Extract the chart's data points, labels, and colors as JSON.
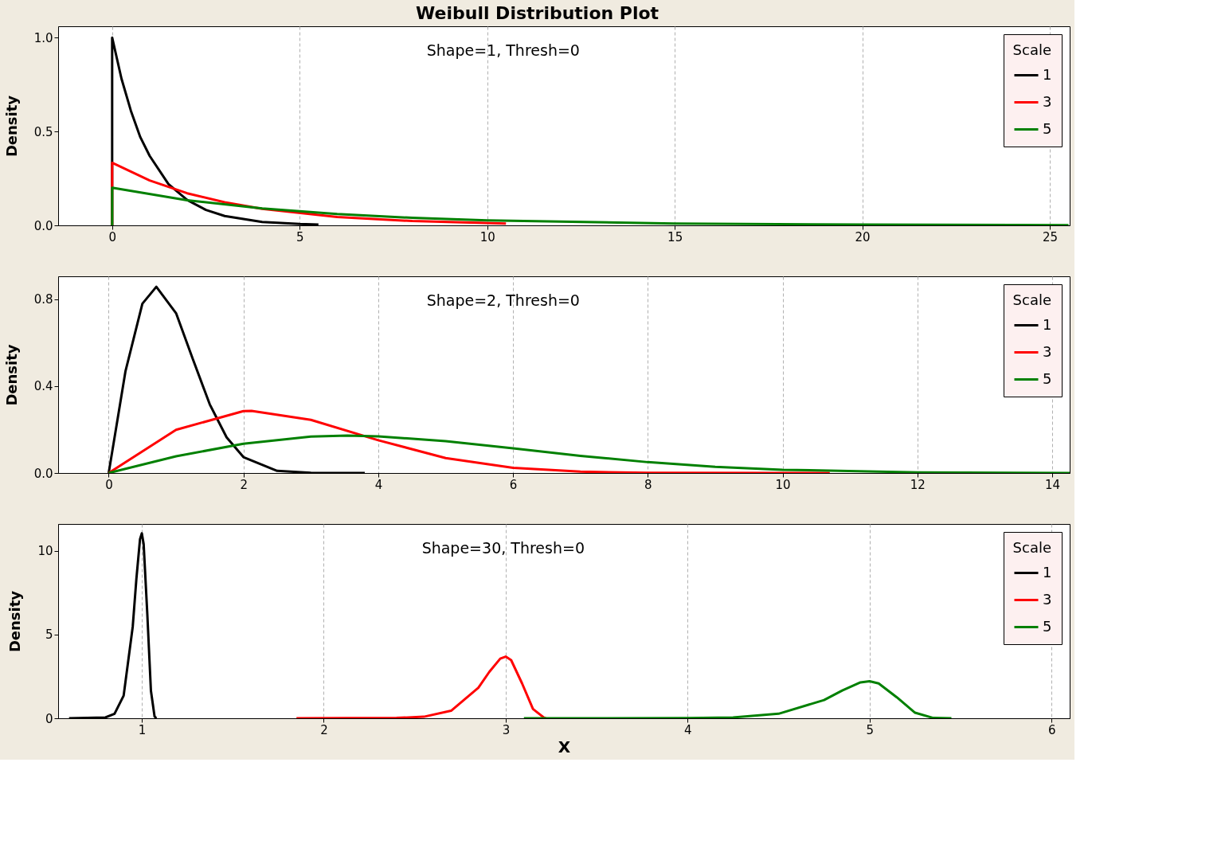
{
  "chart_data": [
    {
      "type": "line",
      "title": "Weibull Distribution Plot",
      "ylabel": "Density",
      "annotations": [
        "Shape=1, Thresh=0"
      ],
      "legend_title": "Scale",
      "legend": "top right",
      "grid": "x",
      "xlim": [
        -1.44,
        25.53
      ],
      "xticks": [
        0,
        5,
        10,
        15,
        20,
        25
      ],
      "ylim": [
        0,
        1.06
      ],
      "yticks": [
        {
          "value": 0,
          "label": "0.0"
        },
        {
          "value": 0.5,
          "label": "0.5"
        },
        {
          "value": 1,
          "label": "1.0"
        }
      ],
      "series": [
        {
          "name": "1",
          "color": "#000000",
          "x": [
            0,
            0,
            0.25,
            0.5,
            0.75,
            1,
            1.5,
            2,
            2.5,
            3,
            4,
            5,
            5.5
          ],
          "values": [
            0,
            1,
            0.78,
            0.61,
            0.47,
            0.37,
            0.22,
            0.135,
            0.082,
            0.05,
            0.018,
            0.007,
            0.004
          ]
        },
        {
          "name": "3",
          "color": "#ff0000",
          "x": [
            0,
            0,
            1,
            2,
            3,
            4,
            6,
            8,
            10.5
          ],
          "values": [
            0,
            0.333,
            0.239,
            0.171,
            0.123,
            0.088,
            0.045,
            0.023,
            0.01
          ]
        },
        {
          "name": "5",
          "color": "#008000",
          "x": [
            0,
            0,
            2,
            4,
            6,
            8,
            10,
            15,
            20,
            25.5
          ],
          "values": [
            0,
            0.2,
            0.134,
            0.09,
            0.06,
            0.04,
            0.027,
            0.01,
            0.004,
            0.001
          ]
        }
      ]
    },
    {
      "type": "line",
      "ylabel": "Density",
      "annotations": [
        "Shape=2, Thresh=0"
      ],
      "legend_title": "Scale",
      "legend": "top right",
      "grid": "x",
      "xlim": [
        -0.75,
        14.26
      ],
      "xticks": [
        0,
        2,
        4,
        6,
        8,
        10,
        12,
        14
      ],
      "ylim": [
        0,
        0.906
      ],
      "yticks": [
        {
          "value": 0,
          "label": "0.0"
        },
        {
          "value": 0.4,
          "label": "0.4"
        },
        {
          "value": 0.8,
          "label": "0.8"
        }
      ],
      "series": [
        {
          "name": "1",
          "color": "#000000",
          "x": [
            0,
            0.25,
            0.5,
            0.707,
            1,
            1.25,
            1.5,
            1.75,
            2,
            2.5,
            3,
            3.8
          ],
          "values": [
            0,
            0.47,
            0.78,
            0.858,
            0.736,
            0.524,
            0.316,
            0.164,
            0.073,
            0.01,
            0.001,
            0
          ]
        },
        {
          "name": "3",
          "color": "#ff0000",
          "x": [
            0,
            1,
            2,
            2.12,
            3,
            4,
            5,
            6,
            7,
            8,
            10.7
          ],
          "values": [
            0,
            0.199,
            0.285,
            0.286,
            0.245,
            0.151,
            0.069,
            0.024,
            0.006,
            0.001,
            0
          ]
        },
        {
          "name": "5",
          "color": "#008000",
          "x": [
            0,
            1,
            2,
            3,
            3.54,
            4,
            5,
            6,
            7,
            8,
            9,
            10,
            12,
            14.26
          ],
          "values": [
            0,
            0.077,
            0.135,
            0.168,
            0.172,
            0.169,
            0.147,
            0.114,
            0.079,
            0.05,
            0.028,
            0.015,
            0.003,
            0
          ]
        }
      ]
    },
    {
      "type": "line",
      "xlabel": "X",
      "ylabel": "Density",
      "annotations": [
        "Shape=30, Thresh=0"
      ],
      "legend_title": "Scale",
      "legend": "top right",
      "grid": "x",
      "xlim": [
        0.54,
        6.1
      ],
      "xticks": [
        1,
        2,
        3,
        4,
        5,
        6
      ],
      "ylim": [
        0,
        11.6
      ],
      "yticks": [
        0,
        5,
        10
      ],
      "series": [
        {
          "name": "1",
          "color": "#000000",
          "x": [
            0.6,
            0.8,
            0.85,
            0.9,
            0.95,
            0.97,
            0.99,
            1.0,
            1.01,
            1.03,
            1.05,
            1.07,
            1.08
          ],
          "values": [
            0,
            0.05,
            0.27,
            1.35,
            5.47,
            8.31,
            10.69,
            11.04,
            10.4,
            6.24,
            1.64,
            0.11,
            0
          ]
        },
        {
          "name": "3",
          "color": "#ff0000",
          "x": [
            1.85,
            2.4,
            2.55,
            2.7,
            2.85,
            2.91,
            2.97,
            3.0,
            3.03,
            3.09,
            3.15,
            3.21,
            3.22
          ],
          "values": [
            0,
            0.02,
            0.09,
            0.45,
            1.82,
            2.77,
            3.56,
            3.68,
            3.47,
            2.08,
            0.55,
            0.04,
            0
          ]
        },
        {
          "name": "5",
          "color": "#008000",
          "x": [
            3.1,
            4.0,
            4.25,
            4.5,
            4.75,
            4.85,
            4.95,
            5.0,
            5.05,
            5.15,
            5.25,
            5.35,
            5.45
          ],
          "values": [
            0,
            0.01,
            0.05,
            0.27,
            1.09,
            1.66,
            2.14,
            2.21,
            2.08,
            1.25,
            0.33,
            0.02,
            0
          ]
        }
      ]
    }
  ]
}
